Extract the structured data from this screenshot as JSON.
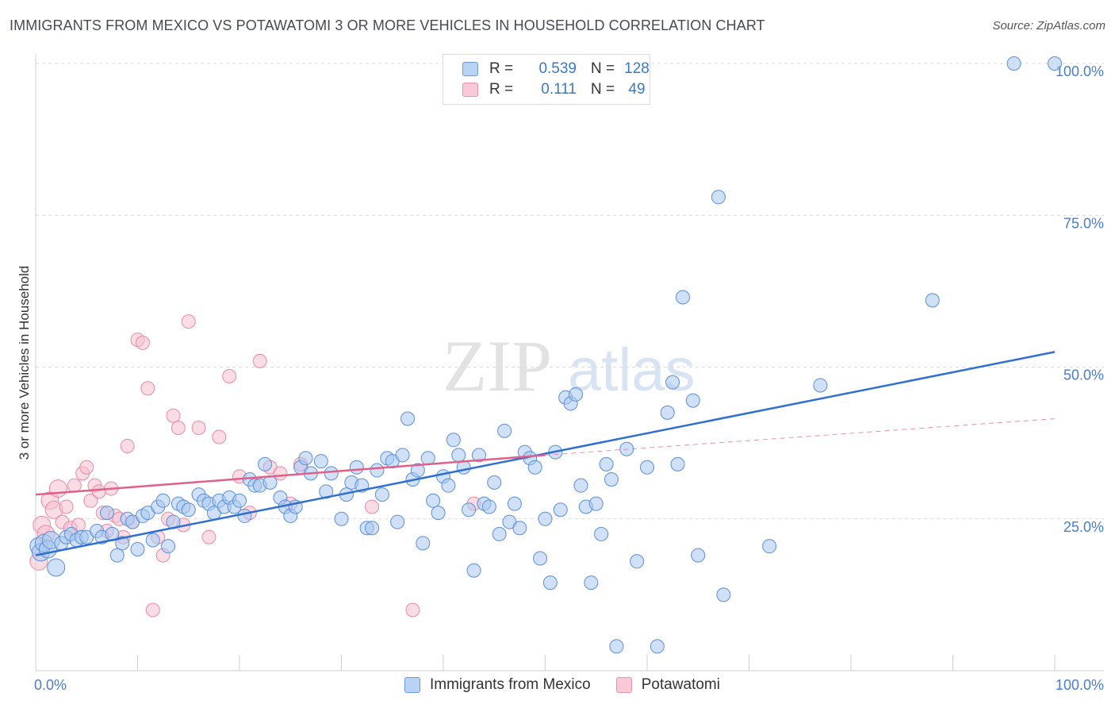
{
  "header": {
    "title": "IMMIGRANTS FROM MEXICO VS POTAWATOMI 3 OR MORE VEHICLES IN HOUSEHOLD CORRELATION CHART",
    "source": "Source: ZipAtlas.com"
  },
  "watermark": {
    "zip": "ZIP",
    "atlas": "atlas"
  },
  "legend_top": {
    "rows": [
      {
        "r_label": "R =",
        "r_value": "0.539",
        "n_label": "N =",
        "n_value": "128"
      },
      {
        "r_label": "R =",
        "r_value": "0.111",
        "n_label": "N =",
        "n_value": "49"
      }
    ]
  },
  "colors": {
    "blue_fill": "#a9c8f0",
    "blue_stroke": "#5b8fd6",
    "blue_line": "#2f6fcf",
    "pink_fill": "#f5bfd0",
    "pink_stroke": "#e88aa8",
    "pink_line": "#e0608a",
    "axis_text": "#4a7cc9"
  },
  "chart_data": {
    "type": "scatter",
    "title": "IMMIGRANTS FROM MEXICO VS POTAWATOMI 3 OR MORE VEHICLES IN HOUSEHOLD CORRELATION CHART",
    "xlabel": "",
    "ylabel": "3 or more Vehicles in Household",
    "xlim": [
      0,
      100
    ],
    "ylim": [
      0,
      100
    ],
    "x_tick_labels": [
      "0.0%",
      "100.0%"
    ],
    "y_tick_labels": [
      "25.0%",
      "50.0%",
      "75.0%",
      "100.0%"
    ],
    "y_ticks": [
      25,
      50,
      75,
      100
    ],
    "grid": true,
    "legend_position": "bottom",
    "series": [
      {
        "name": "Immigrants from Mexico",
        "r": 0.539,
        "n": 128,
        "trend": {
          "x": [
            0,
            100
          ],
          "y": [
            19,
            52.5
          ]
        },
        "points": [
          [
            0.3,
            20.5
          ],
          [
            0.5,
            19.5
          ],
          [
            0.8,
            21
          ],
          [
            1.2,
            20
          ],
          [
            1.5,
            21.5
          ],
          [
            2,
            17
          ],
          [
            2.5,
            21
          ],
          [
            3,
            22
          ],
          [
            3.5,
            22.5
          ],
          [
            4,
            21.5
          ],
          [
            4.5,
            22
          ],
          [
            5,
            22
          ],
          [
            6,
            23
          ],
          [
            6.5,
            22
          ],
          [
            7,
            26
          ],
          [
            7.5,
            22.5
          ],
          [
            8,
            19
          ],
          [
            8.5,
            21
          ],
          [
            9,
            25
          ],
          [
            9.5,
            24.5
          ],
          [
            10,
            20
          ],
          [
            10.5,
            25.5
          ],
          [
            11,
            26
          ],
          [
            11.5,
            21.5
          ],
          [
            12,
            27
          ],
          [
            12.5,
            28
          ],
          [
            13,
            20.5
          ],
          [
            13.5,
            24.5
          ],
          [
            14,
            27.5
          ],
          [
            14.5,
            27
          ],
          [
            15,
            26.5
          ],
          [
            16,
            29
          ],
          [
            16.5,
            28
          ],
          [
            17,
            27.5
          ],
          [
            17.5,
            26
          ],
          [
            18,
            28
          ],
          [
            18.5,
            27
          ],
          [
            19,
            28.5
          ],
          [
            19.5,
            27
          ],
          [
            20,
            28
          ],
          [
            20.5,
            25.5
          ],
          [
            21,
            31.5
          ],
          [
            21.5,
            30.5
          ],
          [
            22,
            30.5
          ],
          [
            22.5,
            34
          ],
          [
            23,
            31
          ],
          [
            24,
            28.5
          ],
          [
            24.5,
            27
          ],
          [
            25,
            25.5
          ],
          [
            25.5,
            27
          ],
          [
            26,
            33.5
          ],
          [
            26.5,
            35
          ],
          [
            27,
            32.5
          ],
          [
            28,
            34.5
          ],
          [
            28.5,
            29.5
          ],
          [
            29,
            32.5
          ],
          [
            30,
            25
          ],
          [
            30.5,
            29
          ],
          [
            31,
            31
          ],
          [
            31.5,
            33.5
          ],
          [
            32,
            30.5
          ],
          [
            32.5,
            23.5
          ],
          [
            33,
            23.5
          ],
          [
            33.5,
            33
          ],
          [
            34,
            29
          ],
          [
            34.5,
            35
          ],
          [
            35,
            34.5
          ],
          [
            35.5,
            24.5
          ],
          [
            36,
            35.5
          ],
          [
            36.5,
            41.5
          ],
          [
            37,
            31.5
          ],
          [
            37.5,
            33
          ],
          [
            38,
            21
          ],
          [
            38.5,
            35
          ],
          [
            39,
            28
          ],
          [
            39.5,
            26
          ],
          [
            40,
            32
          ],
          [
            40.5,
            30.5
          ],
          [
            41,
            38
          ],
          [
            41.5,
            35.5
          ],
          [
            42,
            33.5
          ],
          [
            42.5,
            26.5
          ],
          [
            43,
            16.5
          ],
          [
            43.5,
            35.5
          ],
          [
            44,
            27.5
          ],
          [
            44.5,
            27
          ],
          [
            45,
            31
          ],
          [
            45.5,
            22.5
          ],
          [
            46,
            39.5
          ],
          [
            46.5,
            24.5
          ],
          [
            47,
            27.5
          ],
          [
            47.5,
            23.5
          ],
          [
            48,
            36
          ],
          [
            48.5,
            35
          ],
          [
            49,
            33.5
          ],
          [
            49.5,
            18.5
          ],
          [
            50,
            25
          ],
          [
            50.5,
            14.5
          ],
          [
            51,
            36
          ],
          [
            51.5,
            26.5
          ],
          [
            52,
            45
          ],
          [
            52.5,
            44
          ],
          [
            53,
            45.5
          ],
          [
            53.5,
            30.5
          ],
          [
            54,
            27
          ],
          [
            54.5,
            14.5
          ],
          [
            55,
            27.5
          ],
          [
            55.5,
            22.5
          ],
          [
            56,
            34
          ],
          [
            56.5,
            31.5
          ],
          [
            57,
            4
          ],
          [
            58,
            36.5
          ],
          [
            59,
            18
          ],
          [
            60,
            33.5
          ],
          [
            61,
            4
          ],
          [
            62,
            42.5
          ],
          [
            62.5,
            47.5
          ],
          [
            63,
            34
          ],
          [
            63.5,
            61.5
          ],
          [
            64.5,
            44.5
          ],
          [
            65,
            19
          ],
          [
            67,
            78
          ],
          [
            67.5,
            12.5
          ],
          [
            72,
            20.5
          ],
          [
            77,
            47
          ],
          [
            88,
            61
          ],
          [
            96,
            100
          ],
          [
            100,
            100
          ]
        ]
      },
      {
        "name": "Potawatomi",
        "r": 0.111,
        "n": 49,
        "trend": {
          "x": [
            0,
            50
          ],
          "y": [
            29,
            35.5
          ]
        },
        "dashed_extension": {
          "x": [
            50,
            100
          ],
          "y": [
            35.5,
            41.5
          ]
        },
        "points": [
          [
            0.3,
            18
          ],
          [
            0.6,
            24
          ],
          [
            1,
            22.5
          ],
          [
            1.4,
            28
          ],
          [
            1.8,
            26.5
          ],
          [
            2.2,
            30
          ],
          [
            2.6,
            24.5
          ],
          [
            3,
            27
          ],
          [
            3.4,
            23.5
          ],
          [
            3.8,
            30.5
          ],
          [
            4.2,
            24
          ],
          [
            4.6,
            32.5
          ],
          [
            5,
            33.5
          ],
          [
            5.4,
            28
          ],
          [
            5.8,
            30.5
          ],
          [
            6.2,
            29.5
          ],
          [
            6.6,
            26
          ],
          [
            7,
            23
          ],
          [
            7.4,
            30
          ],
          [
            7.8,
            25.5
          ],
          [
            8.2,
            25
          ],
          [
            8.6,
            22
          ],
          [
            9,
            37
          ],
          [
            9.5,
            24.5
          ],
          [
            10,
            54.5
          ],
          [
            10.5,
            54
          ],
          [
            11,
            46.5
          ],
          [
            11.5,
            10
          ],
          [
            12,
            22
          ],
          [
            12.5,
            19
          ],
          [
            13,
            25
          ],
          [
            13.5,
            42
          ],
          [
            14,
            40
          ],
          [
            14.5,
            24
          ],
          [
            15,
            57.5
          ],
          [
            16,
            40
          ],
          [
            17,
            22
          ],
          [
            18,
            38.5
          ],
          [
            19,
            48.5
          ],
          [
            20,
            32
          ],
          [
            21,
            26
          ],
          [
            22,
            51
          ],
          [
            23,
            33.5
          ],
          [
            24,
            32.5
          ],
          [
            25,
            27.5
          ],
          [
            26,
            34
          ],
          [
            33,
            27
          ],
          [
            37,
            10
          ],
          [
            43,
            27.5
          ]
        ]
      }
    ]
  },
  "legend_bottom": {
    "items": [
      {
        "label": "Immigrants from Mexico"
      },
      {
        "label": "Potawatomi"
      }
    ]
  }
}
